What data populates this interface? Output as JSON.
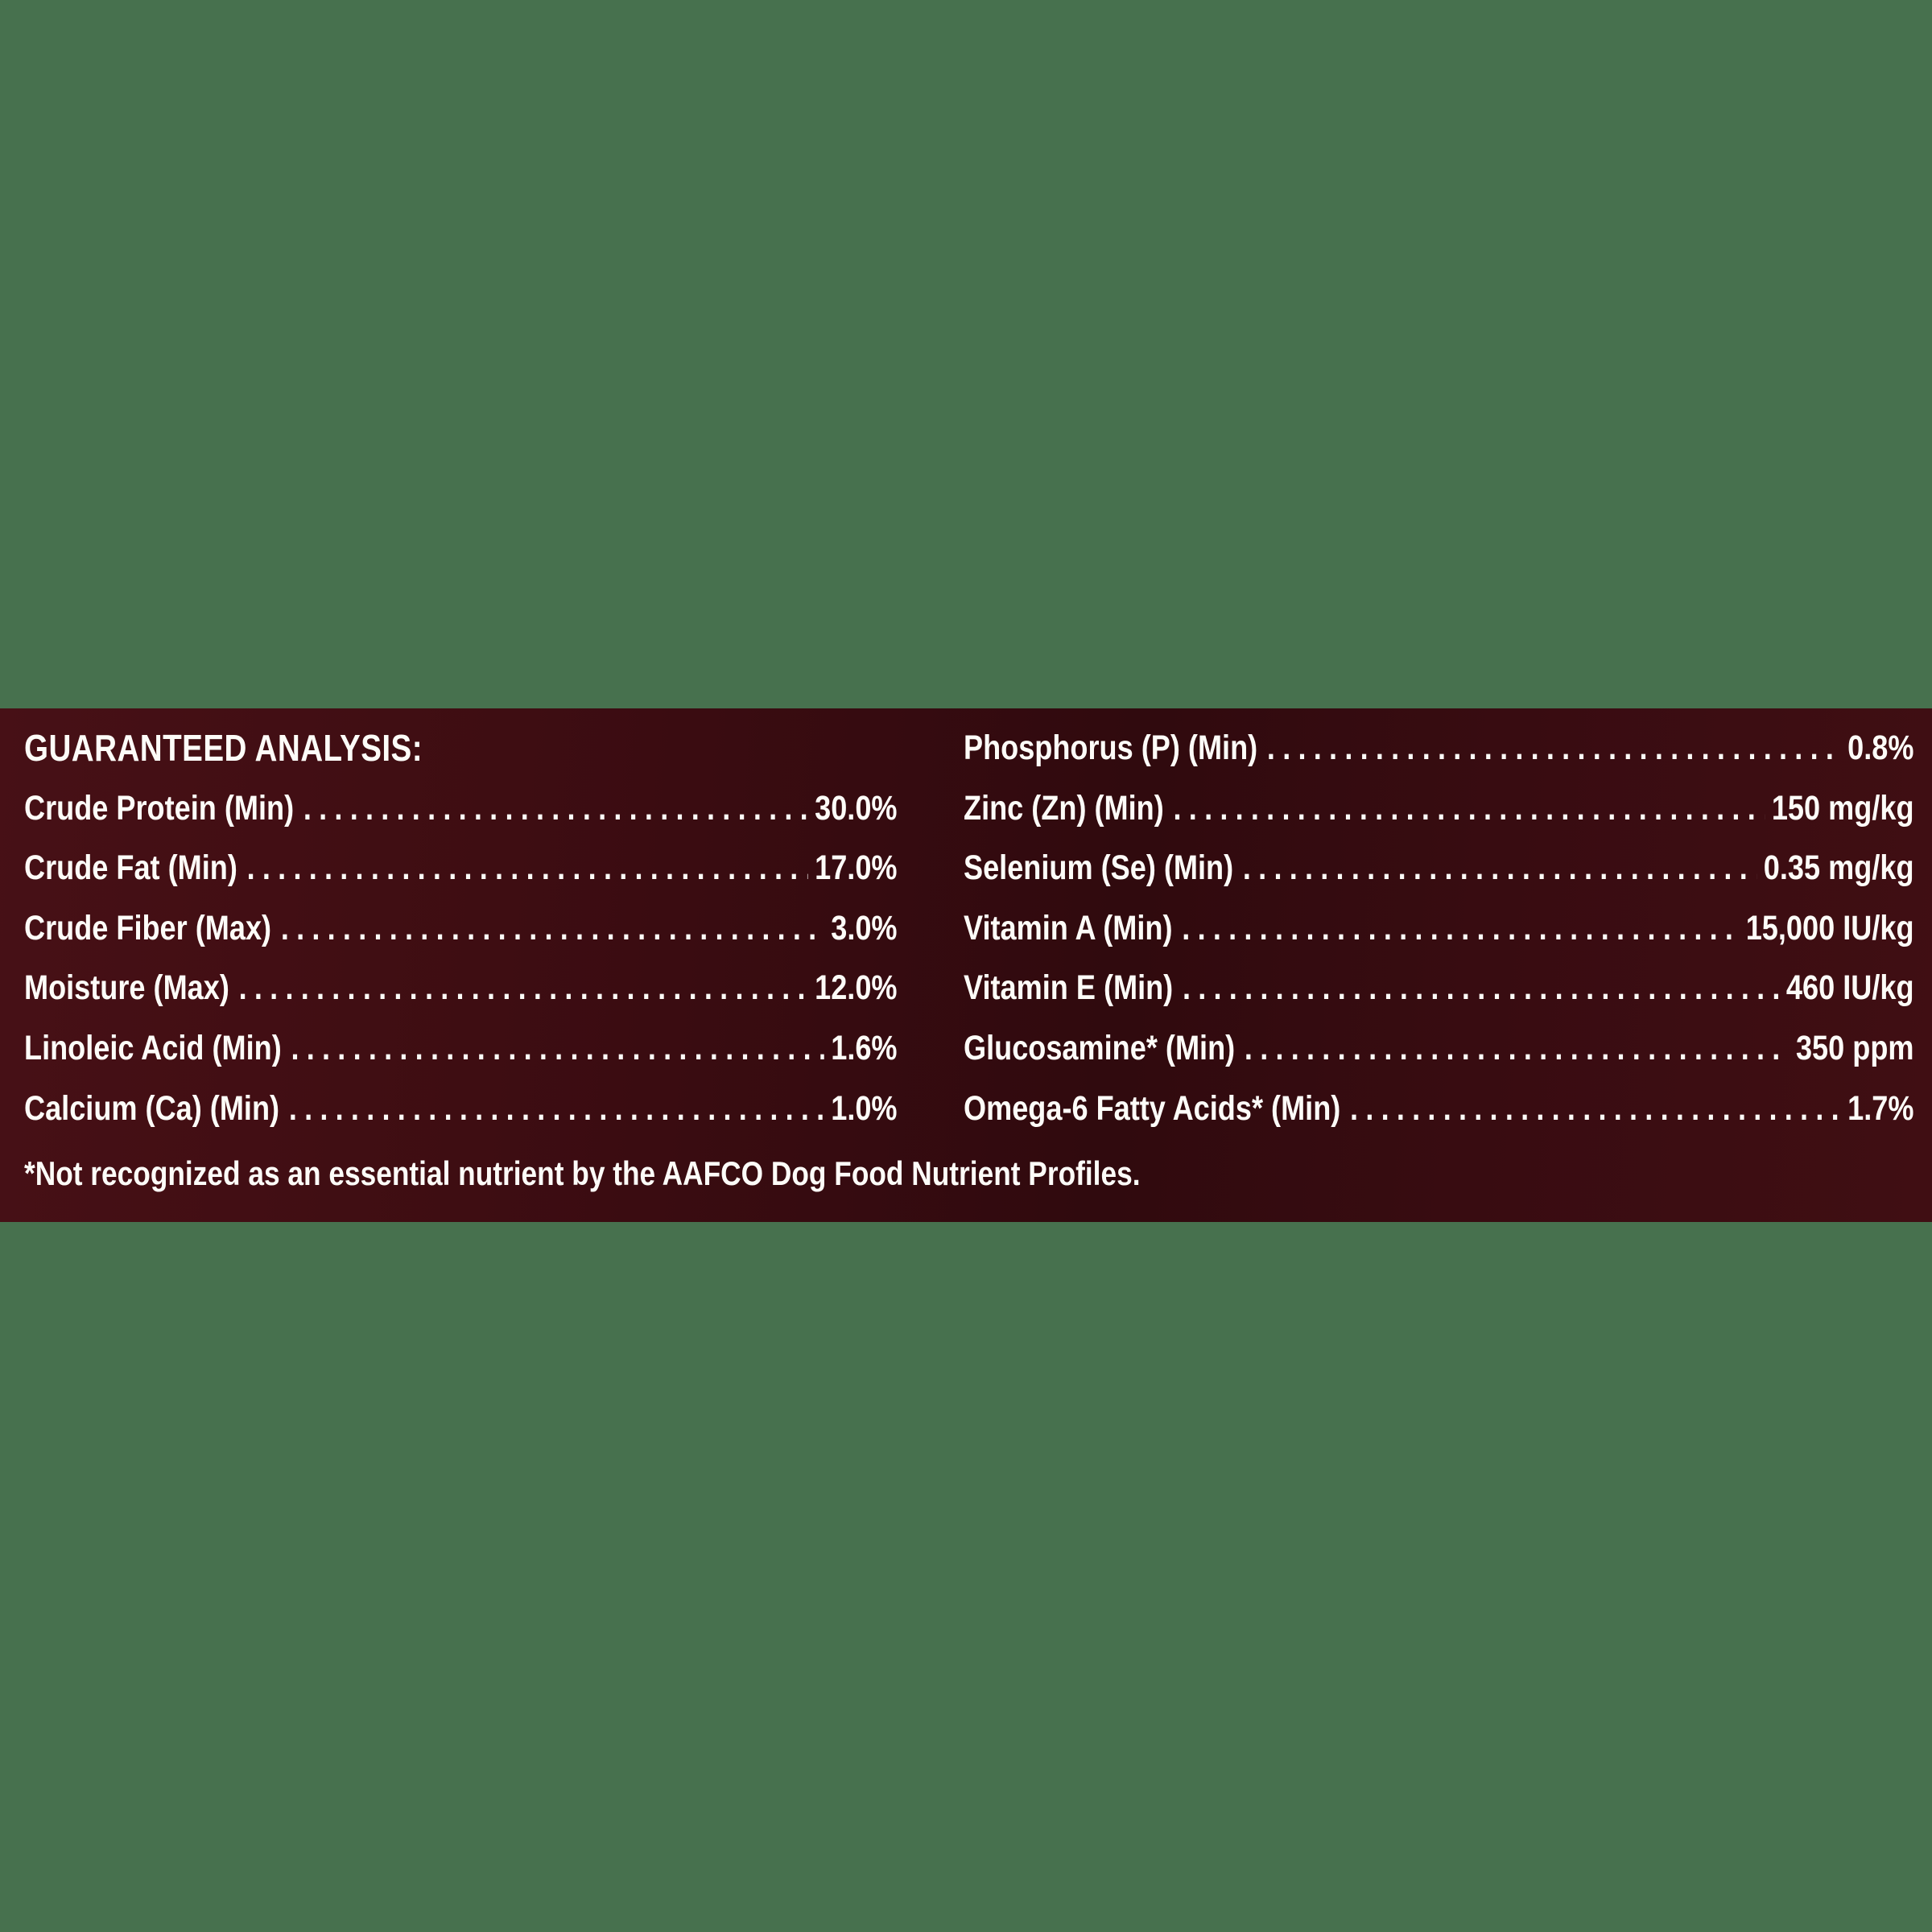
{
  "panel": {
    "header": "GUARANTEED ANALYSIS:",
    "left_column": [
      {
        "name": "Crude Protein (Min)",
        "value": "30.0%"
      },
      {
        "name": "Crude Fat (Min)",
        "value": "17.0%"
      },
      {
        "name": "Crude Fiber (Max)",
        "value": "3.0%"
      },
      {
        "name": "Moisture (Max)",
        "value": "12.0%"
      },
      {
        "name": "Linoleic Acid (Min)",
        "value": "1.6%"
      },
      {
        "name": "Calcium (Ca) (Min)",
        "value": "1.0%"
      }
    ],
    "right_column": [
      {
        "name": "Phosphorus (P) (Min)",
        "value": "0.8%"
      },
      {
        "name": "Zinc (Zn) (Min)",
        "value": "150 mg/kg"
      },
      {
        "name": "Selenium (Se) (Min)",
        "value": "0.35 mg/kg"
      },
      {
        "name": "Vitamin A (Min)",
        "value": "15,000 IU/kg"
      },
      {
        "name": "Vitamin E (Min)",
        "value": "460 IU/kg"
      },
      {
        "name": "Glucosamine* (Min)",
        "value": "350 ppm"
      },
      {
        "name": "Omega-6 Fatty Acids* (Min)",
        "value": "1.7%"
      }
    ],
    "footnote": "*Not recognized as an essential nutrient by the AAFCO Dog Food Nutrient Profiles.",
    "colors": {
      "page_background": "#47714E",
      "panel_background": "#3A0C10",
      "text": "#FDFCF8"
    }
  }
}
